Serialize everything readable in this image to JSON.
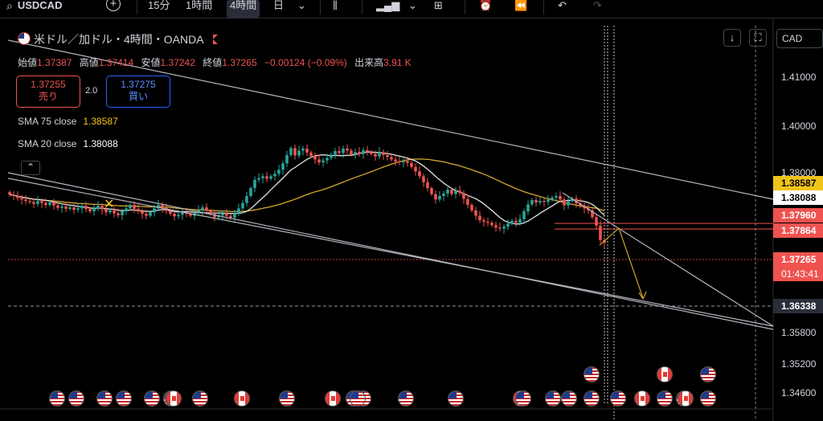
{
  "toolbar": {
    "symbol": "USDCAD",
    "timeframes": [
      "15分",
      "1時間",
      "4時間",
      "日"
    ],
    "active_timeframe": "4時間"
  },
  "legend": {
    "title": "米ドル／加ドル・4時間・OANDA",
    "open_label": "始値",
    "open": "1.37387",
    "high_label": "高値",
    "high": "1.37414",
    "low_label": "安値",
    "low": "1.37242",
    "close_label": "終値",
    "close": "1.37265",
    "change": "−0.00124 (−0.09%)",
    "volume_label": "出来高",
    "volume": "3.91 K"
  },
  "trade": {
    "sell_price": "1.37255",
    "sell_label": "売り",
    "spread": "2.0",
    "buy_price": "1.37275",
    "buy_label": "買い"
  },
  "indicators": [
    {
      "label": "SMA 75 close",
      "value": "1.38587",
      "color": "#f0c419"
    },
    {
      "label": "SMA 20 close",
      "value": "1.38088",
      "color": "#ffffff"
    }
  ],
  "currency_button": "CAD",
  "colors": {
    "up": "#26a69a",
    "down": "#ef5350",
    "sma75": "#d4a72c",
    "sma20": "#e6e6e6",
    "trend": "#b2b5be",
    "projection": "#c9a227",
    "resistance": "#ef5350"
  },
  "price_labels": [
    {
      "value": "1.38587",
      "bg": "#f0c419",
      "fg": "#000000"
    },
    {
      "value": "1.38088",
      "bg": "#ffffff",
      "fg": "#000000"
    },
    {
      "value": "1.37960",
      "bg": "#ef5350",
      "fg": "#ffffff"
    },
    {
      "value": "1.37864",
      "bg": "#ef5350",
      "fg": "#ffffff"
    },
    {
      "value": "1.37265",
      "bg": "#ef5350",
      "fg": "#ffffff"
    },
    {
      "value": "01:43:41",
      "bg": "#ef5350",
      "fg": "#ffffff"
    },
    {
      "value": "1.36338",
      "bg": "#2a2e39",
      "fg": "#ffffff"
    }
  ],
  "chart_data": {
    "type": "candlestick",
    "title": "米ドル／加ドル・4時間・OANDA",
    "y_ticks": [
      "1.41000",
      "1.40000",
      "1.38000",
      "1.35800",
      "1.35200",
      "1.34600"
    ],
    "ylim": [
      1.3437,
      1.4144
    ],
    "close_series_approx": [
      1.3825,
      1.3822,
      1.3818,
      1.3815,
      1.3812,
      1.381,
      1.3806,
      1.3812,
      1.3808,
      1.3804,
      1.3809,
      1.3803,
      1.3798,
      1.3801,
      1.3796,
      1.3799,
      1.3794,
      1.3797,
      1.3802,
      1.3796,
      1.3791,
      1.3797,
      1.3802,
      1.3795,
      1.3789,
      1.3793,
      1.3787,
      1.3783,
      1.3791,
      1.3797,
      1.3804,
      1.3796,
      1.3791,
      1.3786,
      1.3782,
      1.3789,
      1.3797,
      1.3804,
      1.3798,
      1.3792,
      1.3786,
      1.3781,
      1.3784,
      1.379,
      1.3786,
      1.3782,
      1.3787,
      1.3793,
      1.3799,
      1.3792,
      1.3786,
      1.3779,
      1.3783,
      1.3787,
      1.3782,
      1.3778,
      1.3787,
      1.3797,
      1.3808,
      1.3822,
      1.3838,
      1.3855,
      1.3858,
      1.3862,
      1.3857,
      1.3862,
      1.3867,
      1.3875,
      1.3888,
      1.3905,
      1.3919,
      1.3904,
      1.3914,
      1.3918,
      1.391,
      1.3903,
      1.3896,
      1.389,
      1.3894,
      1.3899,
      1.3906,
      1.3913,
      1.3909,
      1.3918,
      1.3914,
      1.3906,
      1.3911,
      1.3907,
      1.3915,
      1.3911,
      1.3907,
      1.3902,
      1.3911,
      1.3905,
      1.3901,
      1.3896,
      1.3892,
      1.389,
      1.3893,
      1.3889,
      1.3881,
      1.3872,
      1.3862,
      1.385,
      1.3838,
      1.3826,
      1.3815,
      1.3822,
      1.3827,
      1.3835,
      1.3826,
      1.3833,
      1.3828,
      1.3816,
      1.3804,
      1.3793,
      1.3782,
      1.3773,
      1.377,
      1.3768,
      1.3763,
      1.3758,
      1.3756,
      1.376,
      1.3766,
      1.3772,
      1.3768,
      1.3775,
      1.3791,
      1.3805,
      1.3814,
      1.3809,
      1.3812,
      1.381,
      1.3815,
      1.3819,
      1.3822,
      1.3815,
      1.3803,
      1.3812,
      1.3817,
      1.3807,
      1.3803,
      1.3797,
      1.3793,
      1.3779,
      1.3762,
      1.3733,
      1.3727
    ]
  },
  "event_rows": [
    {
      "flags": [
        "us",
        "us",
        "us",
        "us",
        "us",
        "us",
        "us",
        "ca",
        "us",
        "ca",
        "us",
        "us",
        "us",
        "us",
        "ca",
        "us",
        "us",
        "us",
        "us",
        "ca",
        "us",
        "us",
        "us",
        "ca",
        "us",
        "us",
        "ca",
        "ca"
      ]
    },
    {
      "flags": [
        "us",
        "ca",
        "us"
      ]
    }
  ]
}
